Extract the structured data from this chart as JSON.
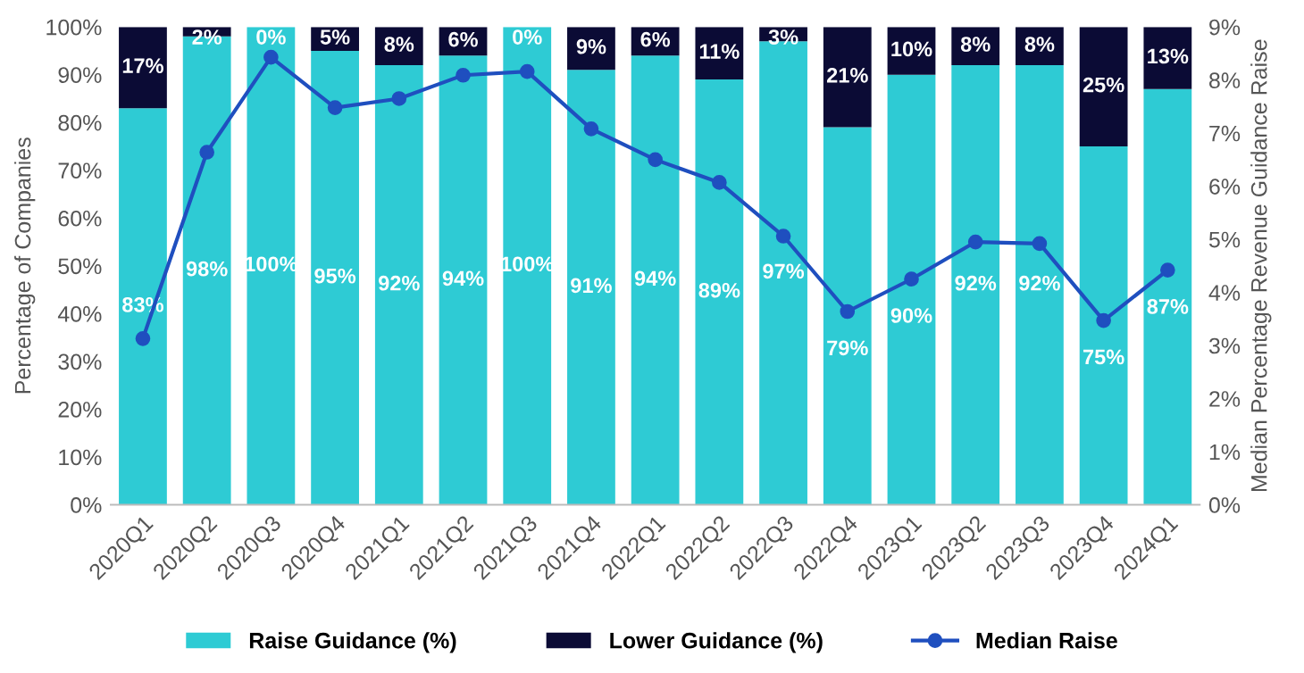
{
  "chart_data": {
    "type": "bar",
    "stacked": true,
    "ylabel": "Percentage of Companies",
    "y2label": "Median Percentage Revenue Guidance Raise",
    "categories": [
      "2020Q1",
      "2020Q2",
      "2020Q3",
      "2020Q4",
      "2021Q1",
      "2021Q2",
      "2021Q3",
      "2021Q4",
      "2022Q1",
      "2022Q2",
      "2022Q3",
      "2022Q4",
      "2023Q1",
      "2023Q2",
      "2023Q3",
      "2023Q4",
      "2024Q1"
    ],
    "series": [
      {
        "name": "Raise Guidance (%)",
        "color": "#2ecbd4",
        "values": [
          83,
          98,
          100,
          95,
          92,
          94,
          100,
          91,
          94,
          89,
          97,
          79,
          90,
          92,
          92,
          75,
          87
        ],
        "value_labels": [
          "83%",
          "98%",
          "100%",
          "95%",
          "92%",
          "94%",
          "100%",
          "91%",
          "94%",
          "89%",
          "97%",
          "79%",
          "90%",
          "92%",
          "92%",
          "75%",
          "87%"
        ]
      },
      {
        "name": "Lower Guidance (%)",
        "color": "#0b0b35",
        "values": [
          17,
          2,
          0,
          5,
          8,
          6,
          0,
          9,
          6,
          11,
          3,
          21,
          10,
          8,
          8,
          25,
          13
        ],
        "value_labels": [
          "17%",
          "2%",
          "0%",
          "5%",
          "8%",
          "6%",
          "0%",
          "9%",
          "6%",
          "11%",
          "3%",
          "21%",
          "10%",
          "8%",
          "8%",
          "25%",
          "13%"
        ]
      },
      {
        "name": "Median Raise",
        "type": "line",
        "axis": "y2",
        "color": "#1f4fbf",
        "marker": "circle",
        "values": [
          3.13,
          6.64,
          8.43,
          7.48,
          7.65,
          8.09,
          8.16,
          7.08,
          6.5,
          6.07,
          5.06,
          3.64,
          4.25,
          4.95,
          4.92,
          3.47,
          4.42
        ]
      }
    ],
    "ylim": [
      0,
      100
    ],
    "yticks": [
      {
        "value": 0,
        "label": "0%"
      },
      {
        "value": 10,
        "label": "10%"
      },
      {
        "value": 20,
        "label": "20%"
      },
      {
        "value": 30,
        "label": "30%"
      },
      {
        "value": 40,
        "label": "40%"
      },
      {
        "value": 50,
        "label": "50%"
      },
      {
        "value": 60,
        "label": "60%"
      },
      {
        "value": 70,
        "label": "70%"
      },
      {
        "value": 80,
        "label": "80%"
      },
      {
        "value": 90,
        "label": "90%"
      },
      {
        "value": 100,
        "label": "100%"
      }
    ],
    "y2lim": [
      0,
      9
    ],
    "y2ticks": [
      {
        "value": 0,
        "label": "0%"
      },
      {
        "value": 1,
        "label": "1%"
      },
      {
        "value": 2,
        "label": "2%"
      },
      {
        "value": 3,
        "label": "3%"
      },
      {
        "value": 4,
        "label": "4%"
      },
      {
        "value": 5,
        "label": "5%"
      },
      {
        "value": 6,
        "label": "6%"
      },
      {
        "value": 7,
        "label": "7%"
      },
      {
        "value": 8,
        "label": "8%"
      },
      {
        "value": 9,
        "label": "9%"
      }
    ],
    "grid": false,
    "legend": "bottom"
  }
}
